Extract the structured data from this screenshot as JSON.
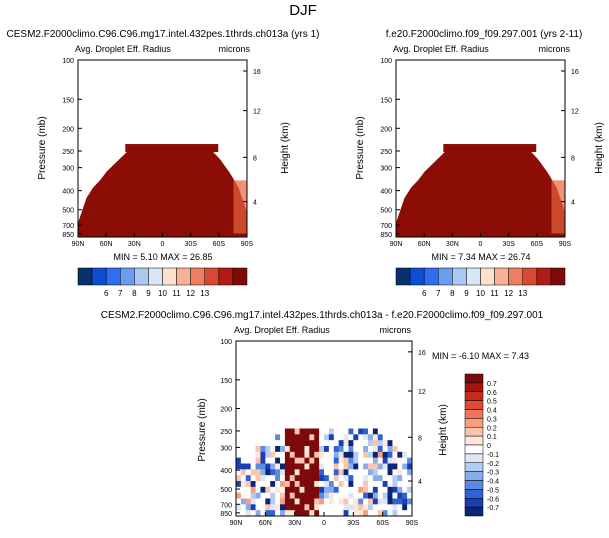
{
  "figure_title": "DJF",
  "chart_data": [
    {
      "type": "heatmap",
      "title": "CESM2.F2000climo.C96.C96.mg17.intel.432pes.1thrds.ch013a (yrs 1)",
      "variable": "Avg. Droplet Eff. Radius",
      "units": "microns",
      "xlabel": "",
      "ylabel": "Pressure (mb)",
      "ylabel_right": "Height (km)",
      "x_ticks": [
        "90N",
        "60N",
        "30N",
        "0",
        "30S",
        "60S",
        "90S"
      ],
      "y_ticks": [
        "100",
        "150",
        "200",
        "250",
        "300",
        "400",
        "500",
        "700",
        "850"
      ],
      "height_ticks": [
        "16",
        "12",
        "8",
        "4"
      ],
      "stats": "MIN =   5.10   MAX =  26.85",
      "colorbar_labels": [
        "6",
        "7",
        "8",
        "9",
        "10",
        "11",
        "12",
        "13"
      ],
      "colorbar_colors": [
        "#08306b",
        "#0b4fd4",
        "#2f6ef0",
        "#6a9df0",
        "#a9c8f2",
        "#d9e6f5",
        "#fce1d0",
        "#f9b196",
        "#ee7e5f",
        "#d94830",
        "#b01b14",
        "#7d0a0a"
      ],
      "fill_color": "#8c0c06"
    },
    {
      "type": "heatmap",
      "title": "f.e20.F2000climo.f09_f09.297.001 (yrs 2-11)",
      "variable": "Avg. Droplet Eff. Radius",
      "units": "microns",
      "xlabel": "",
      "ylabel": "Pressure (mb)",
      "ylabel_right": "Height (km)",
      "x_ticks": [
        "90N",
        "60N",
        "30N",
        "0",
        "30S",
        "60S",
        "90S"
      ],
      "y_ticks": [
        "100",
        "150",
        "200",
        "250",
        "300",
        "400",
        "500",
        "700",
        "850"
      ],
      "height_ticks": [
        "16",
        "12",
        "8",
        "4"
      ],
      "stats": "MIN =   7.34   MAX =  26.74",
      "colorbar_labels": [
        "6",
        "7",
        "8",
        "9",
        "10",
        "11",
        "12",
        "13"
      ],
      "colorbar_colors": [
        "#08306b",
        "#0b4fd4",
        "#2f6ef0",
        "#6a9df0",
        "#a9c8f2",
        "#d9e6f5",
        "#fce1d0",
        "#f9b196",
        "#ee7e5f",
        "#d94830",
        "#b01b14",
        "#7d0a0a"
      ],
      "fill_color": "#8c0c06"
    },
    {
      "type": "heatmap",
      "title": "CESM2.F2000climo.C96.C96.mg17.intel.432pes.1thrds.ch013a - f.e20.F2000climo.f09_f09.297.001",
      "variable": "Avg. Droplet Eff. Radius",
      "units": "microns",
      "xlabel": "",
      "ylabel": "Pressure (mb)",
      "ylabel_right": "Height (km)",
      "x_ticks": [
        "90N",
        "60N",
        "30N",
        "0",
        "30S",
        "60S",
        "90S"
      ],
      "y_ticks": [
        "100",
        "150",
        "200",
        "250",
        "300",
        "400",
        "500",
        "700",
        "850"
      ],
      "height_ticks": [
        "16",
        "12",
        "8",
        "4"
      ],
      "stats": "MIN =  -6.10   MAX =   7.43",
      "colorbar_labels": [
        "0.7",
        "0.6",
        "0.5",
        "0.4",
        "0.3",
        "0.2",
        "0.1",
        "0",
        "-0.1",
        "-0.2",
        "-0.3",
        "-0.4",
        "-0.5",
        "-0.6",
        "-0.7"
      ],
      "colorbar_colors": [
        "#7d0a0a",
        "#a5150f",
        "#c8291c",
        "#de4a35",
        "#ef7558",
        "#f79d80",
        "#fbc4ad",
        "#fde6db",
        "#ffffff",
        "#dde8f7",
        "#b4cdf2",
        "#86ace9",
        "#5a8ae2",
        "#2f62d3",
        "#1a3fb2",
        "#0a2573"
      ]
    }
  ]
}
